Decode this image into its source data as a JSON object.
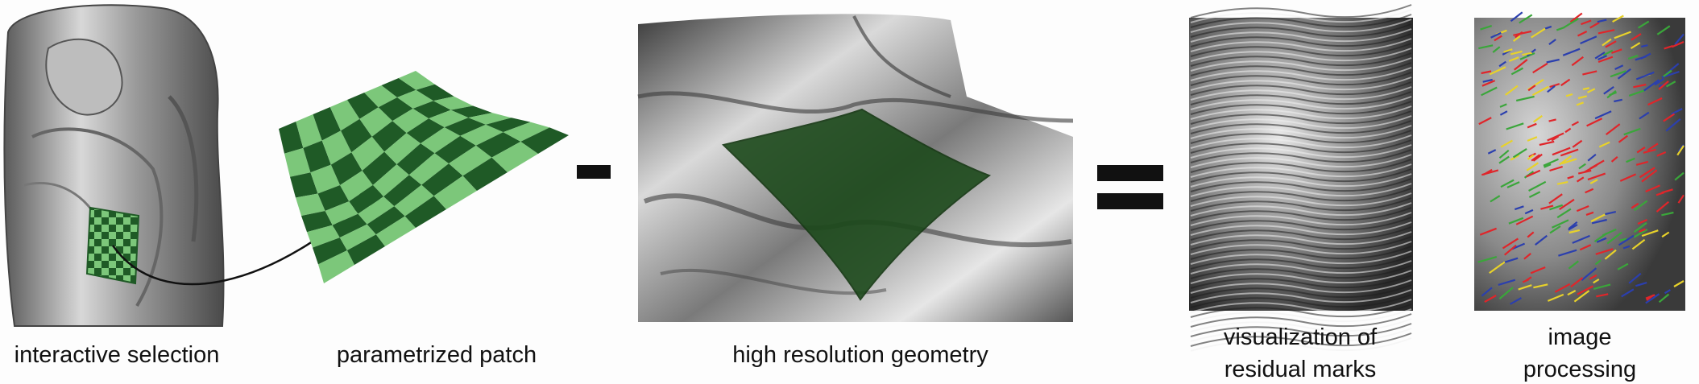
{
  "figure": {
    "captions": {
      "interactive_selection": "interactive selection",
      "parametrized_patch": "parametrized patch",
      "high_resolution_geometry": "high resolution geometry",
      "visualization_line1": "visualization of",
      "visualization_line2": "residual marks",
      "image_processing_line1": "image",
      "image_processing_line2": "processing"
    },
    "operators": {
      "minus": "minus",
      "equals": "equals"
    },
    "colors": {
      "patch_dark": "#1f5a26",
      "patch_light": "#7cc77a",
      "overlay_green": "#1d4a1c",
      "stroke_red": "#e0252a",
      "stroke_blue": "#2b3fae",
      "stroke_yellow": "#e8d22a",
      "stroke_green": "#3aa63a"
    }
  }
}
